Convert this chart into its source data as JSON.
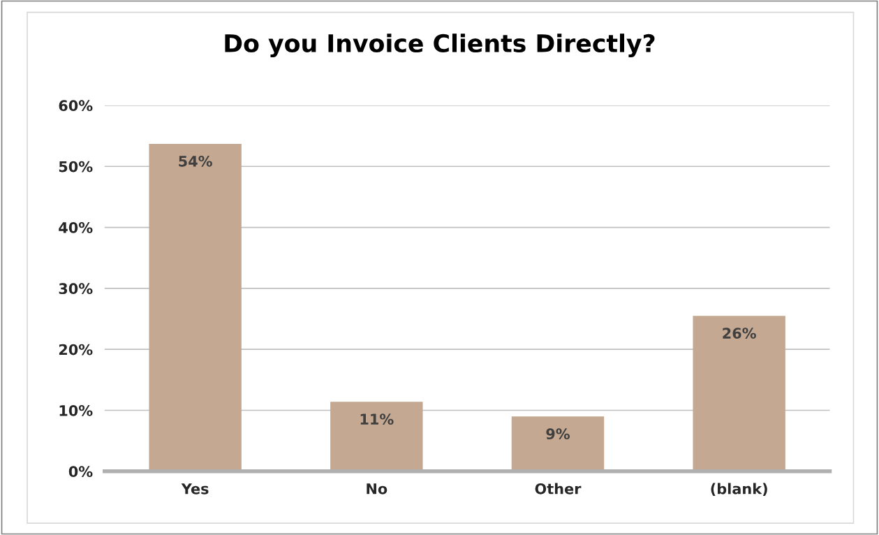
{
  "chart_data": {
    "type": "bar",
    "title": "Do you Invoice Clients Directly?",
    "categories": [
      "Yes",
      "No",
      "Other",
      "(blank)"
    ],
    "values": [
      53.7,
      11.4,
      9.0,
      25.5
    ],
    "value_labels": [
      "54%",
      "11%",
      "9%",
      "26%"
    ],
    "color": "#c4a891",
    "ylim": [
      0,
      60
    ],
    "yticks": [
      {
        "value": 0,
        "label": "0%"
      },
      {
        "value": 10,
        "label": "10%"
      },
      {
        "value": 20,
        "label": "20%"
      },
      {
        "value": 30,
        "label": "30%"
      },
      {
        "value": 40,
        "label": "40%"
      },
      {
        "value": 50,
        "label": "50%"
      },
      {
        "value": 60,
        "label": "60%"
      }
    ],
    "grid": "y"
  }
}
